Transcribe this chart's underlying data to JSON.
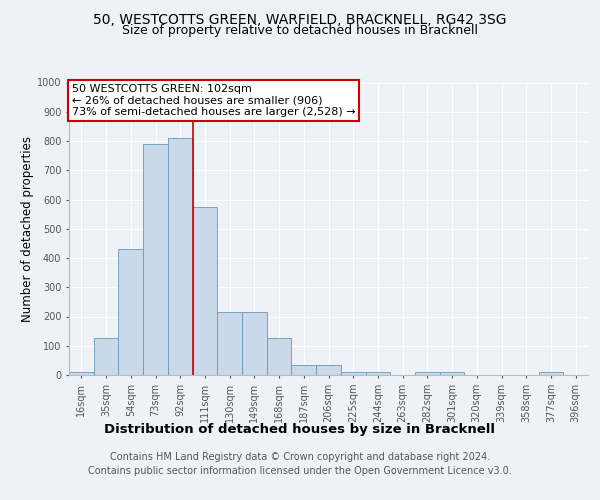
{
  "title1": "50, WESTCOTTS GREEN, WARFIELD, BRACKNELL, RG42 3SG",
  "title2": "Size of property relative to detached houses in Bracknell",
  "xlabel": "Distribution of detached houses by size in Bracknell",
  "ylabel": "Number of detached properties",
  "categories": [
    "16sqm",
    "35sqm",
    "54sqm",
    "73sqm",
    "92sqm",
    "111sqm",
    "130sqm",
    "149sqm",
    "168sqm",
    "187sqm",
    "206sqm",
    "225sqm",
    "244sqm",
    "263sqm",
    "282sqm",
    "301sqm",
    "320sqm",
    "339sqm",
    "358sqm",
    "377sqm",
    "396sqm"
  ],
  "values": [
    10,
    125,
    430,
    790,
    810,
    575,
    215,
    215,
    125,
    35,
    35,
    10,
    10,
    0,
    10,
    10,
    0,
    0,
    0,
    10,
    0
  ],
  "bar_color": "#c9d9e9",
  "bar_edge_color": "#6699bb",
  "vline_color": "#cc0000",
  "annotation_text": "50 WESTCOTTS GREEN: 102sqm\n← 26% of detached houses are smaller (906)\n73% of semi-detached houses are larger (2,528) →",
  "annotation_box_color": "#ffffff",
  "annotation_box_edge": "#cc0000",
  "footnote1": "Contains HM Land Registry data © Crown copyright and database right 2024.",
  "footnote2": "Contains public sector information licensed under the Open Government Licence v3.0.",
  "ylim": [
    0,
    1000
  ],
  "yticks": [
    0,
    100,
    200,
    300,
    400,
    500,
    600,
    700,
    800,
    900,
    1000
  ],
  "bg_color": "#eef2f7",
  "plot_bg_color": "#eef2f7",
  "grid_color": "#ffffff",
  "title1_fontsize": 10,
  "title2_fontsize": 9,
  "xlabel_fontsize": 9.5,
  "ylabel_fontsize": 8.5,
  "tick_fontsize": 7,
  "footnote_fontsize": 7,
  "ann_fontsize": 8
}
